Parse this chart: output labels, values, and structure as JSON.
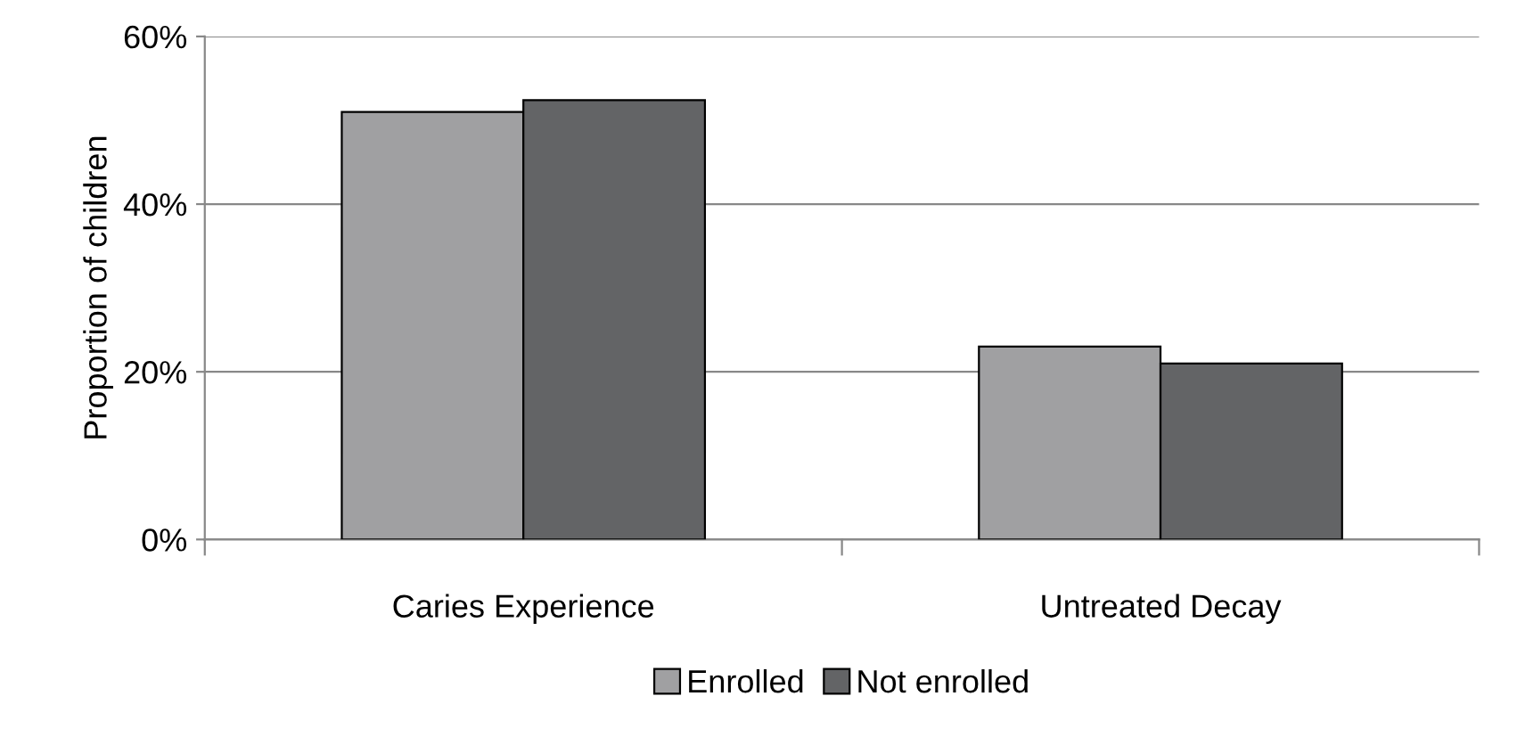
{
  "chart_data": {
    "type": "bar",
    "ylabel": "Proportion of children",
    "categories": [
      "Caries Experience",
      "Untreated Decay"
    ],
    "series": [
      {
        "name": "Enrolled",
        "color": "#a0a0a2",
        "values": [
          51,
          23
        ]
      },
      {
        "name": "Not enrolled",
        "color": "#636466",
        "values": [
          52.4,
          21
        ]
      }
    ],
    "ylim": [
      0,
      60
    ],
    "yticks": [
      {
        "value": 0,
        "label": "0%"
      },
      {
        "value": 20,
        "label": "20%"
      },
      {
        "value": 40,
        "label": "40%"
      },
      {
        "value": 60,
        "label": "60%"
      }
    ],
    "grid": "y",
    "legend": "bottom"
  }
}
